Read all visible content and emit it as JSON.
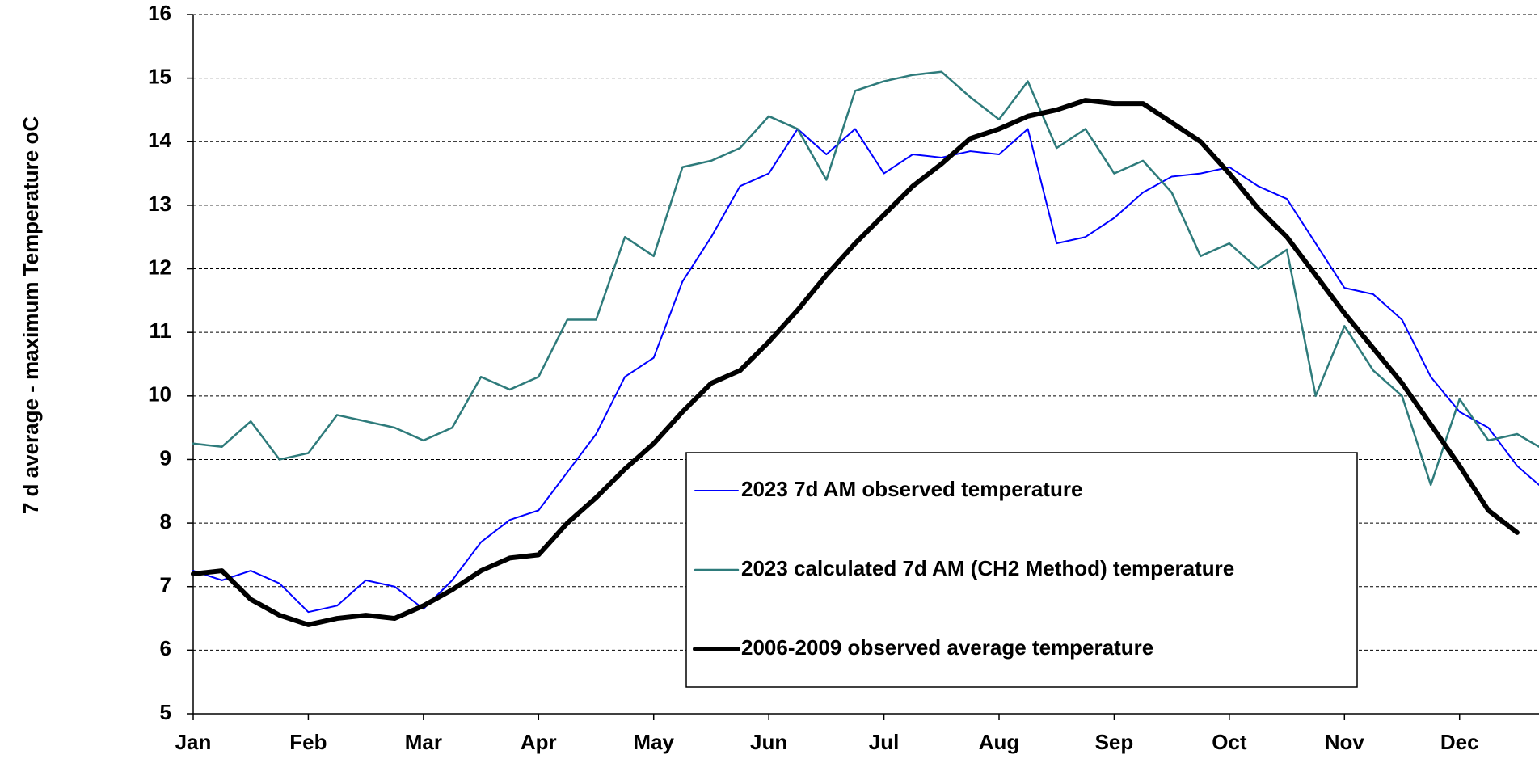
{
  "chart_data": {
    "type": "line",
    "ylabel": "7 d average - maximum Temperature oC",
    "xlim": [
      0,
      11.69
    ],
    "xticks": [
      {
        "value": 0,
        "label": "Jan"
      },
      {
        "value": 1,
        "label": "Feb"
      },
      {
        "value": 2,
        "label": "Mar"
      },
      {
        "value": 3,
        "label": "Apr"
      },
      {
        "value": 4,
        "label": "May"
      },
      {
        "value": 5,
        "label": "Jun"
      },
      {
        "value": 6,
        "label": "Jul"
      },
      {
        "value": 7,
        "label": "Aug"
      },
      {
        "value": 8,
        "label": "Sep"
      },
      {
        "value": 9,
        "label": "Oct"
      },
      {
        "value": 10,
        "label": "Nov"
      },
      {
        "value": 11,
        "label": "Dec"
      }
    ],
    "ylim": [
      5,
      16
    ],
    "yticks": [
      5,
      6,
      7,
      8,
      9,
      10,
      11,
      12,
      13,
      14,
      15,
      16
    ],
    "grid": true,
    "x": [
      0,
      0.25,
      0.5,
      0.75,
      1,
      1.25,
      1.5,
      1.75,
      2,
      2.25,
      2.5,
      2.75,
      3,
      3.25,
      3.5,
      3.75,
      4,
      4.25,
      4.5,
      4.75,
      5,
      5.25,
      5.5,
      5.75,
      6,
      6.25,
      6.5,
      6.75,
      7,
      7.25,
      7.5,
      7.75,
      8,
      8.25,
      8.5,
      8.75,
      9,
      9.25,
      9.5,
      9.75,
      10,
      10.25,
      10.5,
      10.75,
      11,
      11.25,
      11.5,
      11.69
    ],
    "series": [
      {
        "name": "2023 7d AM observed temperature",
        "color": "#0000ff",
        "width": 2,
        "values": [
          7.25,
          7.1,
          7.25,
          7.05,
          6.6,
          6.7,
          7.1,
          7.0,
          6.65,
          7.1,
          7.7,
          8.05,
          8.2,
          8.8,
          9.4,
          10.3,
          10.6,
          11.8,
          12.5,
          13.3,
          13.5,
          14.2,
          13.8,
          14.2,
          13.5,
          13.8,
          13.75,
          13.85,
          13.8,
          14.2,
          12.4,
          12.5,
          12.8,
          13.2,
          13.45,
          13.5,
          13.6,
          13.3,
          13.1,
          12.4,
          11.7,
          11.6,
          11.2,
          10.3,
          9.75,
          9.5,
          8.9,
          8.6
        ]
      },
      {
        "name": "2023 calculated 7d AM (CH2 Method) temperature",
        "color": "#2e7b7b",
        "width": 2.5,
        "values": [
          9.25,
          9.2,
          9.6,
          9.0,
          9.1,
          9.7,
          9.6,
          9.5,
          9.3,
          9.5,
          10.3,
          10.1,
          10.3,
          11.2,
          11.2,
          12.5,
          12.2,
          13.6,
          13.7,
          13.9,
          14.4,
          14.2,
          13.4,
          14.8,
          14.95,
          15.05,
          15.1,
          14.7,
          14.35,
          14.95,
          13.9,
          14.2,
          13.5,
          13.7,
          13.2,
          12.2,
          12.4,
          12.0,
          12.3,
          10.0,
          11.1,
          10.4,
          10.0,
          8.6,
          9.95,
          9.3,
          9.4,
          9.2
        ]
      },
      {
        "name": "2006-2009 observed average temperature",
        "color": "#000000",
        "width": 6,
        "values": [
          7.2,
          7.25,
          6.8,
          6.55,
          6.4,
          6.5,
          6.55,
          6.5,
          6.7,
          6.95,
          7.25,
          7.45,
          7.5,
          8.0,
          8.4,
          8.85,
          9.25,
          9.75,
          10.2,
          10.4,
          10.85,
          11.35,
          11.9,
          12.4,
          12.85,
          13.3,
          13.65,
          14.05,
          14.2,
          14.4,
          14.5,
          14.65,
          14.6,
          14.6,
          14.3,
          14.0,
          13.5,
          12.95,
          12.5,
          11.9,
          11.3,
          10.75,
          10.2,
          9.55,
          8.9,
          8.2,
          7.85,
          null
        ]
      }
    ]
  }
}
